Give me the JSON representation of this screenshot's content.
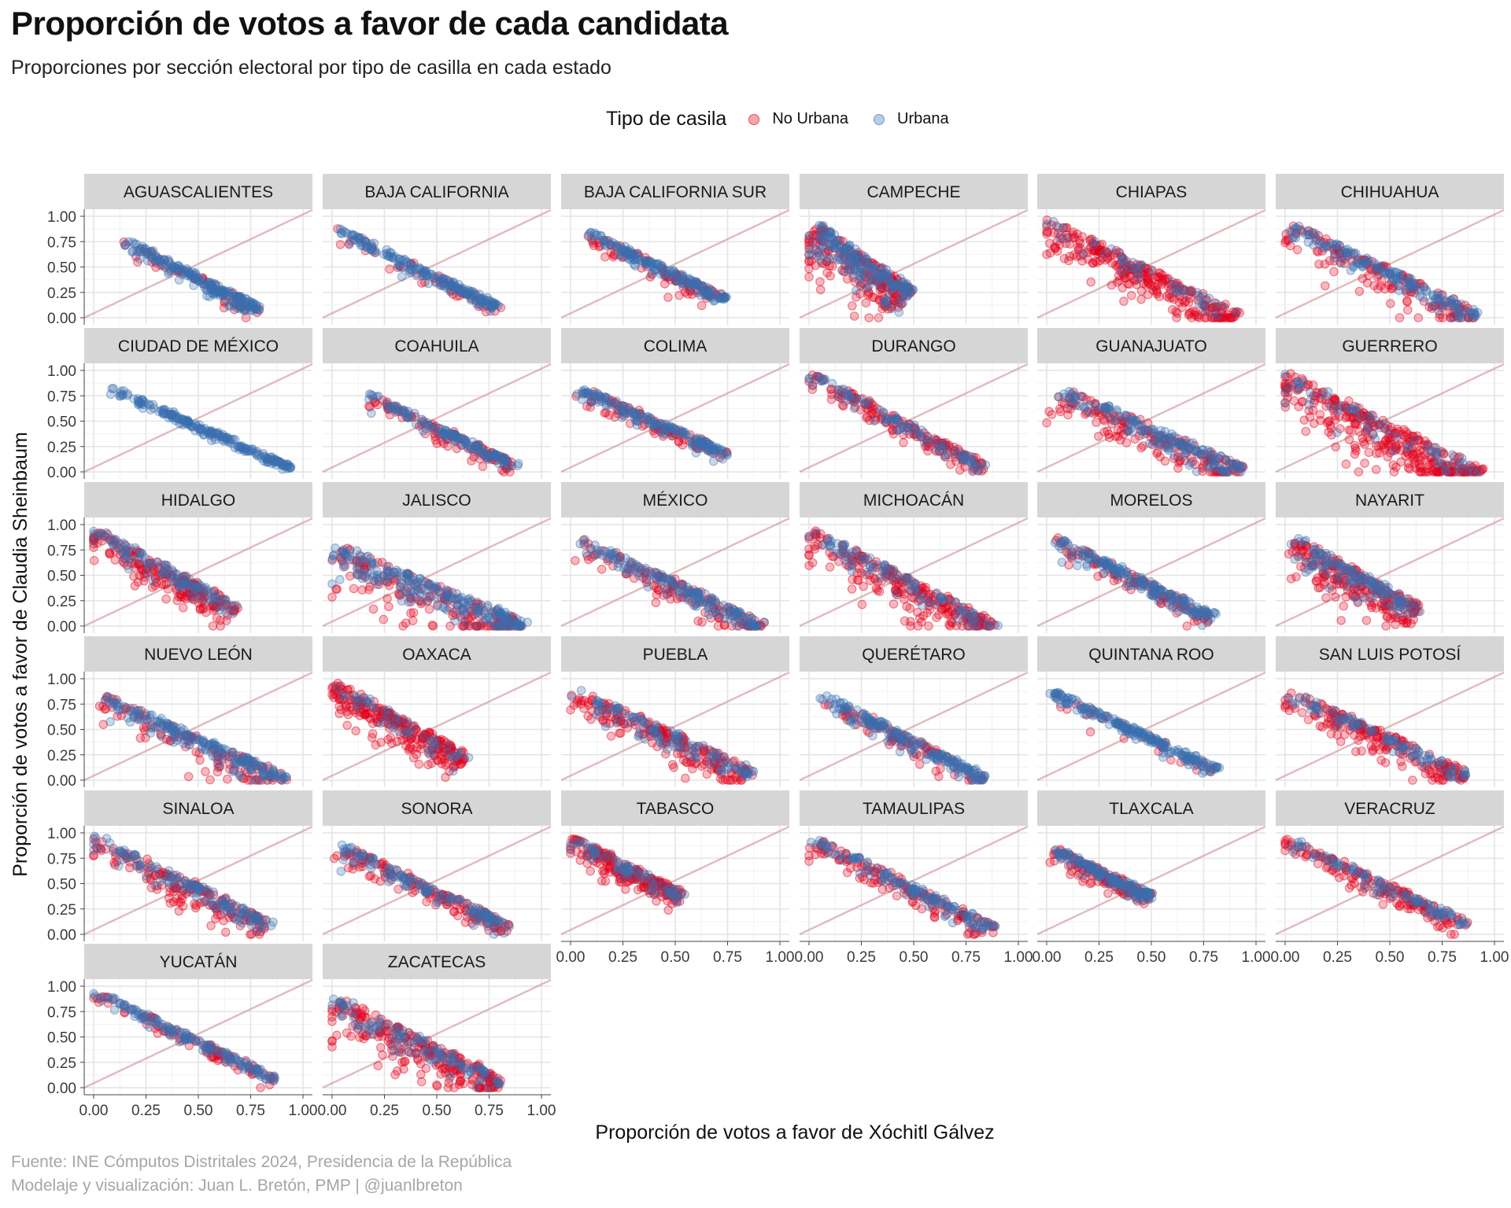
{
  "title": "Proporción de votos a favor de cada candidata",
  "subtitle": "Proporciones por sección electoral por tipo de casilla en cada estado",
  "legend": {
    "title": "Tipo de casila",
    "items": [
      {
        "label": "No Urbana",
        "color": "#e3001b"
      },
      {
        "label": "Urbana",
        "color": "#3a6fb0"
      }
    ]
  },
  "caption": {
    "line1": "Fuente: INE Cómputos Distritales 2024, Presidencia de la República",
    "line2": "Modelaje y visualización: Juan L. Bretón, PMP | @juanlbreton"
  },
  "chart_data": {
    "type": "scatter",
    "facet_by": "estado",
    "xlabel": "Proporción de votos a favor de Xóchitl Gálvez",
    "ylabel": "Proporción de votos a favor de Claudia Sheinbaum",
    "xlim": [
      0,
      1
    ],
    "ylim": [
      0,
      1
    ],
    "xticks": [
      "0.00",
      "0.25",
      "0.50",
      "0.75",
      "1.00"
    ],
    "yticks": [
      "0.00",
      "0.25",
      "0.50",
      "0.75",
      "1.00"
    ],
    "reference_line": "y = x",
    "grid": true,
    "series": [
      {
        "name": "No Urbana",
        "color": "#e3001b"
      },
      {
        "name": "Urbana",
        "color": "#3a6fb0"
      }
    ],
    "facets": [
      {
        "name": "AGUASCALIENTES",
        "x_range": [
          0.15,
          0.8
        ],
        "y_range": [
          0.78,
          0.1
        ],
        "spread": 0.05,
        "rural": 0.2
      },
      {
        "name": "BAJA CALIFORNIA",
        "x_range": [
          0.02,
          0.8
        ],
        "y_range": [
          0.9,
          0.12
        ],
        "spread": 0.04,
        "rural": 0.2
      },
      {
        "name": "BAJA CALIFORNIA SUR",
        "x_range": [
          0.1,
          0.75
        ],
        "y_range": [
          0.85,
          0.2
        ],
        "spread": 0.05,
        "rural": 0.35
      },
      {
        "name": "CAMPECHE",
        "x_range": [
          0.03,
          0.5
        ],
        "y_range": [
          0.95,
          0.28
        ],
        "spread": 0.12,
        "rural": 0.55
      },
      {
        "name": "CHIAPAS",
        "x_range": [
          0.0,
          0.92
        ],
        "y_range": [
          1.0,
          0.05
        ],
        "spread": 0.09,
        "rural": 0.85
      },
      {
        "name": "CHIHUAHUA",
        "x_range": [
          0.03,
          0.93
        ],
        "y_range": [
          0.95,
          0.05
        ],
        "spread": 0.08,
        "rural": 0.5
      },
      {
        "name": "CIUDAD DE MÉXICO",
        "x_range": [
          0.08,
          0.95
        ],
        "y_range": [
          0.85,
          0.05
        ],
        "spread": 0.03,
        "rural": 0.0
      },
      {
        "name": "COAHUILA",
        "x_range": [
          0.18,
          0.88
        ],
        "y_range": [
          0.78,
          0.08
        ],
        "spread": 0.04,
        "rural": 0.5
      },
      {
        "name": "COLIMA",
        "x_range": [
          0.05,
          0.75
        ],
        "y_range": [
          0.85,
          0.2
        ],
        "spread": 0.05,
        "rural": 0.35
      },
      {
        "name": "DURANGO",
        "x_range": [
          0.0,
          0.85
        ],
        "y_range": [
          1.0,
          0.07
        ],
        "spread": 0.05,
        "rural": 0.6
      },
      {
        "name": "GUANAJUATO",
        "x_range": [
          0.08,
          0.95
        ],
        "y_range": [
          0.85,
          0.04
        ],
        "spread": 0.09,
        "rural": 0.55
      },
      {
        "name": "GUERRERO",
        "x_range": [
          0.0,
          0.95
        ],
        "y_range": [
          1.0,
          0.02
        ],
        "spread": 0.12,
        "rural": 0.85
      },
      {
        "name": "HIDALGO",
        "x_range": [
          0.0,
          0.7
        ],
        "y_range": [
          0.98,
          0.2
        ],
        "spread": 0.08,
        "rural": 0.7
      },
      {
        "name": "JALISCO",
        "x_range": [
          0.03,
          0.93
        ],
        "y_range": [
          0.8,
          0.05
        ],
        "spread": 0.12,
        "rural": 0.45
      },
      {
        "name": "MÉXICO",
        "x_range": [
          0.05,
          0.93
        ],
        "y_range": [
          0.88,
          0.03
        ],
        "spread": 0.07,
        "rural": 0.45
      },
      {
        "name": "MICHOACÁN",
        "x_range": [
          0.0,
          0.9
        ],
        "y_range": [
          0.98,
          0.03
        ],
        "spread": 0.09,
        "rural": 0.7
      },
      {
        "name": "MORELOS",
        "x_range": [
          0.05,
          0.8
        ],
        "y_range": [
          0.88,
          0.12
        ],
        "spread": 0.06,
        "rural": 0.35
      },
      {
        "name": "NAYARIT",
        "x_range": [
          0.05,
          0.65
        ],
        "y_range": [
          0.88,
          0.2
        ],
        "spread": 0.1,
        "rural": 0.6
      },
      {
        "name": "NUEVO LEÓN",
        "x_range": [
          0.05,
          0.93
        ],
        "y_range": [
          0.85,
          0.04
        ],
        "spread": 0.08,
        "rural": 0.4
      },
      {
        "name": "OAXACA",
        "x_range": [
          0.0,
          0.65
        ],
        "y_range": [
          1.0,
          0.25
        ],
        "spread": 0.08,
        "rural": 0.85
      },
      {
        "name": "PUEBLA",
        "x_range": [
          0.02,
          0.88
        ],
        "y_range": [
          0.92,
          0.1
        ],
        "spread": 0.08,
        "rural": 0.65
      },
      {
        "name": "QUERÉTARO",
        "x_range": [
          0.08,
          0.85
        ],
        "y_range": [
          0.85,
          0.04
        ],
        "spread": 0.06,
        "rural": 0.4
      },
      {
        "name": "QUINTANA ROO",
        "x_range": [
          0.02,
          0.82
        ],
        "y_range": [
          0.9,
          0.12
        ],
        "spread": 0.04,
        "rural": 0.15
      },
      {
        "name": "SAN LUIS POTOSÍ",
        "x_range": [
          0.02,
          0.88
        ],
        "y_range": [
          0.9,
          0.08
        ],
        "spread": 0.07,
        "rural": 0.7
      },
      {
        "name": "SINALOA",
        "x_range": [
          0.0,
          0.85
        ],
        "y_range": [
          1.0,
          0.12
        ],
        "spread": 0.07,
        "rural": 0.6
      },
      {
        "name": "SONORA",
        "x_range": [
          0.05,
          0.85
        ],
        "y_range": [
          0.9,
          0.1
        ],
        "spread": 0.06,
        "rural": 0.55
      },
      {
        "name": "TABASCO",
        "x_range": [
          0.0,
          0.55
        ],
        "y_range": [
          0.98,
          0.4
        ],
        "spread": 0.06,
        "rural": 0.7
      },
      {
        "name": "TAMAULIPAS",
        "x_range": [
          0.02,
          0.9
        ],
        "y_range": [
          0.98,
          0.07
        ],
        "spread": 0.06,
        "rural": 0.5
      },
      {
        "name": "TLAXCALA",
        "x_range": [
          0.05,
          0.5
        ],
        "y_range": [
          0.85,
          0.4
        ],
        "spread": 0.05,
        "rural": 0.5
      },
      {
        "name": "VERACRUZ",
        "x_range": [
          0.0,
          0.88
        ],
        "y_range": [
          0.98,
          0.12
        ],
        "spread": 0.05,
        "rural": 0.7
      },
      {
        "name": "YUCATÁN",
        "x_range": [
          0.02,
          0.88
        ],
        "y_range": [
          0.95,
          0.1
        ],
        "spread": 0.04,
        "rural": 0.45
      },
      {
        "name": "ZACATECAS",
        "x_range": [
          0.02,
          0.82
        ],
        "y_range": [
          0.9,
          0.1
        ],
        "spread": 0.1,
        "rural": 0.7
      }
    ]
  }
}
